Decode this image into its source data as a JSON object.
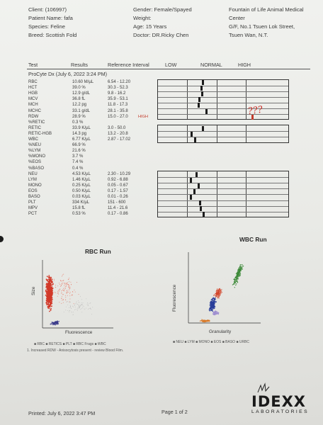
{
  "client": {
    "client_label": "Client: (106997)",
    "patient_label": "Patient Name: fafa",
    "species_label": "Species: Feline",
    "breed_label": "Breed: Scottish Fold",
    "gender_label": "Gender: Female/Spayed",
    "weight_label": "Weight:",
    "age_label": "Age: 15 Years",
    "doctor_label": "Doctor: DR.Ricky Chen"
  },
  "clinic": {
    "line1": "Fountain of Life Animal Medical",
    "line2": "Center",
    "line3": "G/F, No.1 Tsuen Lok Street,",
    "line4": "Tsuen Wan, N.T."
  },
  "table_header": {
    "test": "Test",
    "results": "Results",
    "ref": "Reference Interval",
    "low": "LOW",
    "normal": "NORMAL",
    "high": "HIGH"
  },
  "run_title": "ProCyte Dx (July 6, 2022 3:24 PM)",
  "rows": [
    {
      "name": "RBC",
      "result": "10.60 M/µL",
      "ref": "6.54 - 12.20",
      "flag": "",
      "marker": 0.5
    },
    {
      "name": "HCT",
      "result": "39.0 %",
      "ref": "30.3 - 52.3",
      "flag": "",
      "marker": 0.45
    },
    {
      "name": "HGB",
      "result": "12.9 g/dL",
      "ref": "9.8 - 16.2",
      "flag": "",
      "marker": 0.47
    },
    {
      "name": "MCV",
      "result": "36.8 fL",
      "ref": "35.9 - 53.1",
      "flag": "",
      "marker": 0.38
    },
    {
      "name": "MCH",
      "result": "12.2 pg",
      "ref": "11.8 - 17.3",
      "flag": "",
      "marker": 0.36
    },
    {
      "name": "MCHC",
      "result": "33.1 g/dL",
      "ref": "28.1 - 35.8",
      "flag": "",
      "marker": 0.62
    },
    {
      "name": "RDW",
      "result": "28.9 %",
      "ref": "15.0 - 27.0",
      "flag": "HIGH",
      "marker": 1.1
    },
    {
      "name": "%RETIC",
      "result": "0.3 %",
      "ref": "",
      "flag": "",
      "marker": null
    },
    {
      "name": "RETIC",
      "result": "33.9 K/µL",
      "ref": "3.0 - 50.0",
      "flag": "",
      "marker": 0.5
    },
    {
      "name": "RETIC-HGB",
      "result": "14.3 pg",
      "ref": "13.2 - 20.8",
      "flag": "",
      "marker": 0.12
    },
    {
      "name": "WBC",
      "result": "6.77 K/µL",
      "ref": "2.87 - 17.02",
      "flag": "",
      "marker": 0.25
    },
    {
      "name": "%NEU",
      "result": "66.9 %",
      "ref": "",
      "flag": "",
      "marker": null
    },
    {
      "name": "%LYM",
      "result": "21.6 %",
      "ref": "",
      "flag": "",
      "marker": null
    },
    {
      "name": "%MONO",
      "result": "3.7 %",
      "ref": "",
      "flag": "",
      "marker": null
    },
    {
      "name": "%EOS",
      "result": "7.4 %",
      "ref": "",
      "flag": "",
      "marker": null
    },
    {
      "name": "%BASO",
      "result": "0.4 %",
      "ref": "",
      "flag": "",
      "marker": null
    },
    {
      "name": "NEU",
      "result": "4.53 K/µL",
      "ref": "2.30 - 10.29",
      "flag": "",
      "marker": 0.28
    },
    {
      "name": "LYM",
      "result": "1.46 K/µL",
      "ref": "0.92 - 6.88",
      "flag": "",
      "marker": 0.1
    },
    {
      "name": "MONO",
      "result": "0.25 K/µL",
      "ref": "0.05 - 0.67",
      "flag": "",
      "marker": 0.35
    },
    {
      "name": "EOS",
      "result": "0.50 K/µL",
      "ref": "0.17 - 1.57",
      "flag": "",
      "marker": 0.22
    },
    {
      "name": "BASO",
      "result": "0.03 K/µL",
      "ref": "0.01 - 0.26",
      "flag": "",
      "marker": 0.1
    },
    {
      "name": "PLT",
      "result": "334 K/µL",
      "ref": "151 - 600",
      "flag": "",
      "marker": 0.4
    },
    {
      "name": "MPV",
      "result": "15.8 fL",
      "ref": "11.4 - 21.6",
      "flag": "",
      "marker": 0.42
    },
    {
      "name": "PCT",
      "result": "0.53 %",
      "ref": "0.17 - 0.86",
      "flag": "",
      "marker": 0.52
    }
  ],
  "annotation": "???",
  "rbc_run": {
    "title": "RBC Run",
    "xlabel": "Fluorescence",
    "ylabel": "Size",
    "legend": "■ RBC ■ RETICS ■ PLT ■ RBC Frags ■ WBC",
    "note": "1. Increased RDW - Anisocytosis present - review Blood Film."
  },
  "wbc_run": {
    "title": "WBC Run",
    "xlabel": "Granularity",
    "ylabel": "Fluorescence",
    "legend": "■ NEU ■ LYM ■ MONO ■ EOS ■ BASO ■ URBC"
  },
  "footer": {
    "printed": "Printed: July 6, 2022 3:47 PM",
    "page": "Page 1 of 2",
    "logo": "IDEXX",
    "logo_sub": "LABORATORIES"
  },
  "colors": {
    "flag_red": "#c43a2a",
    "rbc_red": "#d23a2a",
    "wbc_green": "#3e8a3a",
    "wbc_blue": "#2a3f9a"
  }
}
